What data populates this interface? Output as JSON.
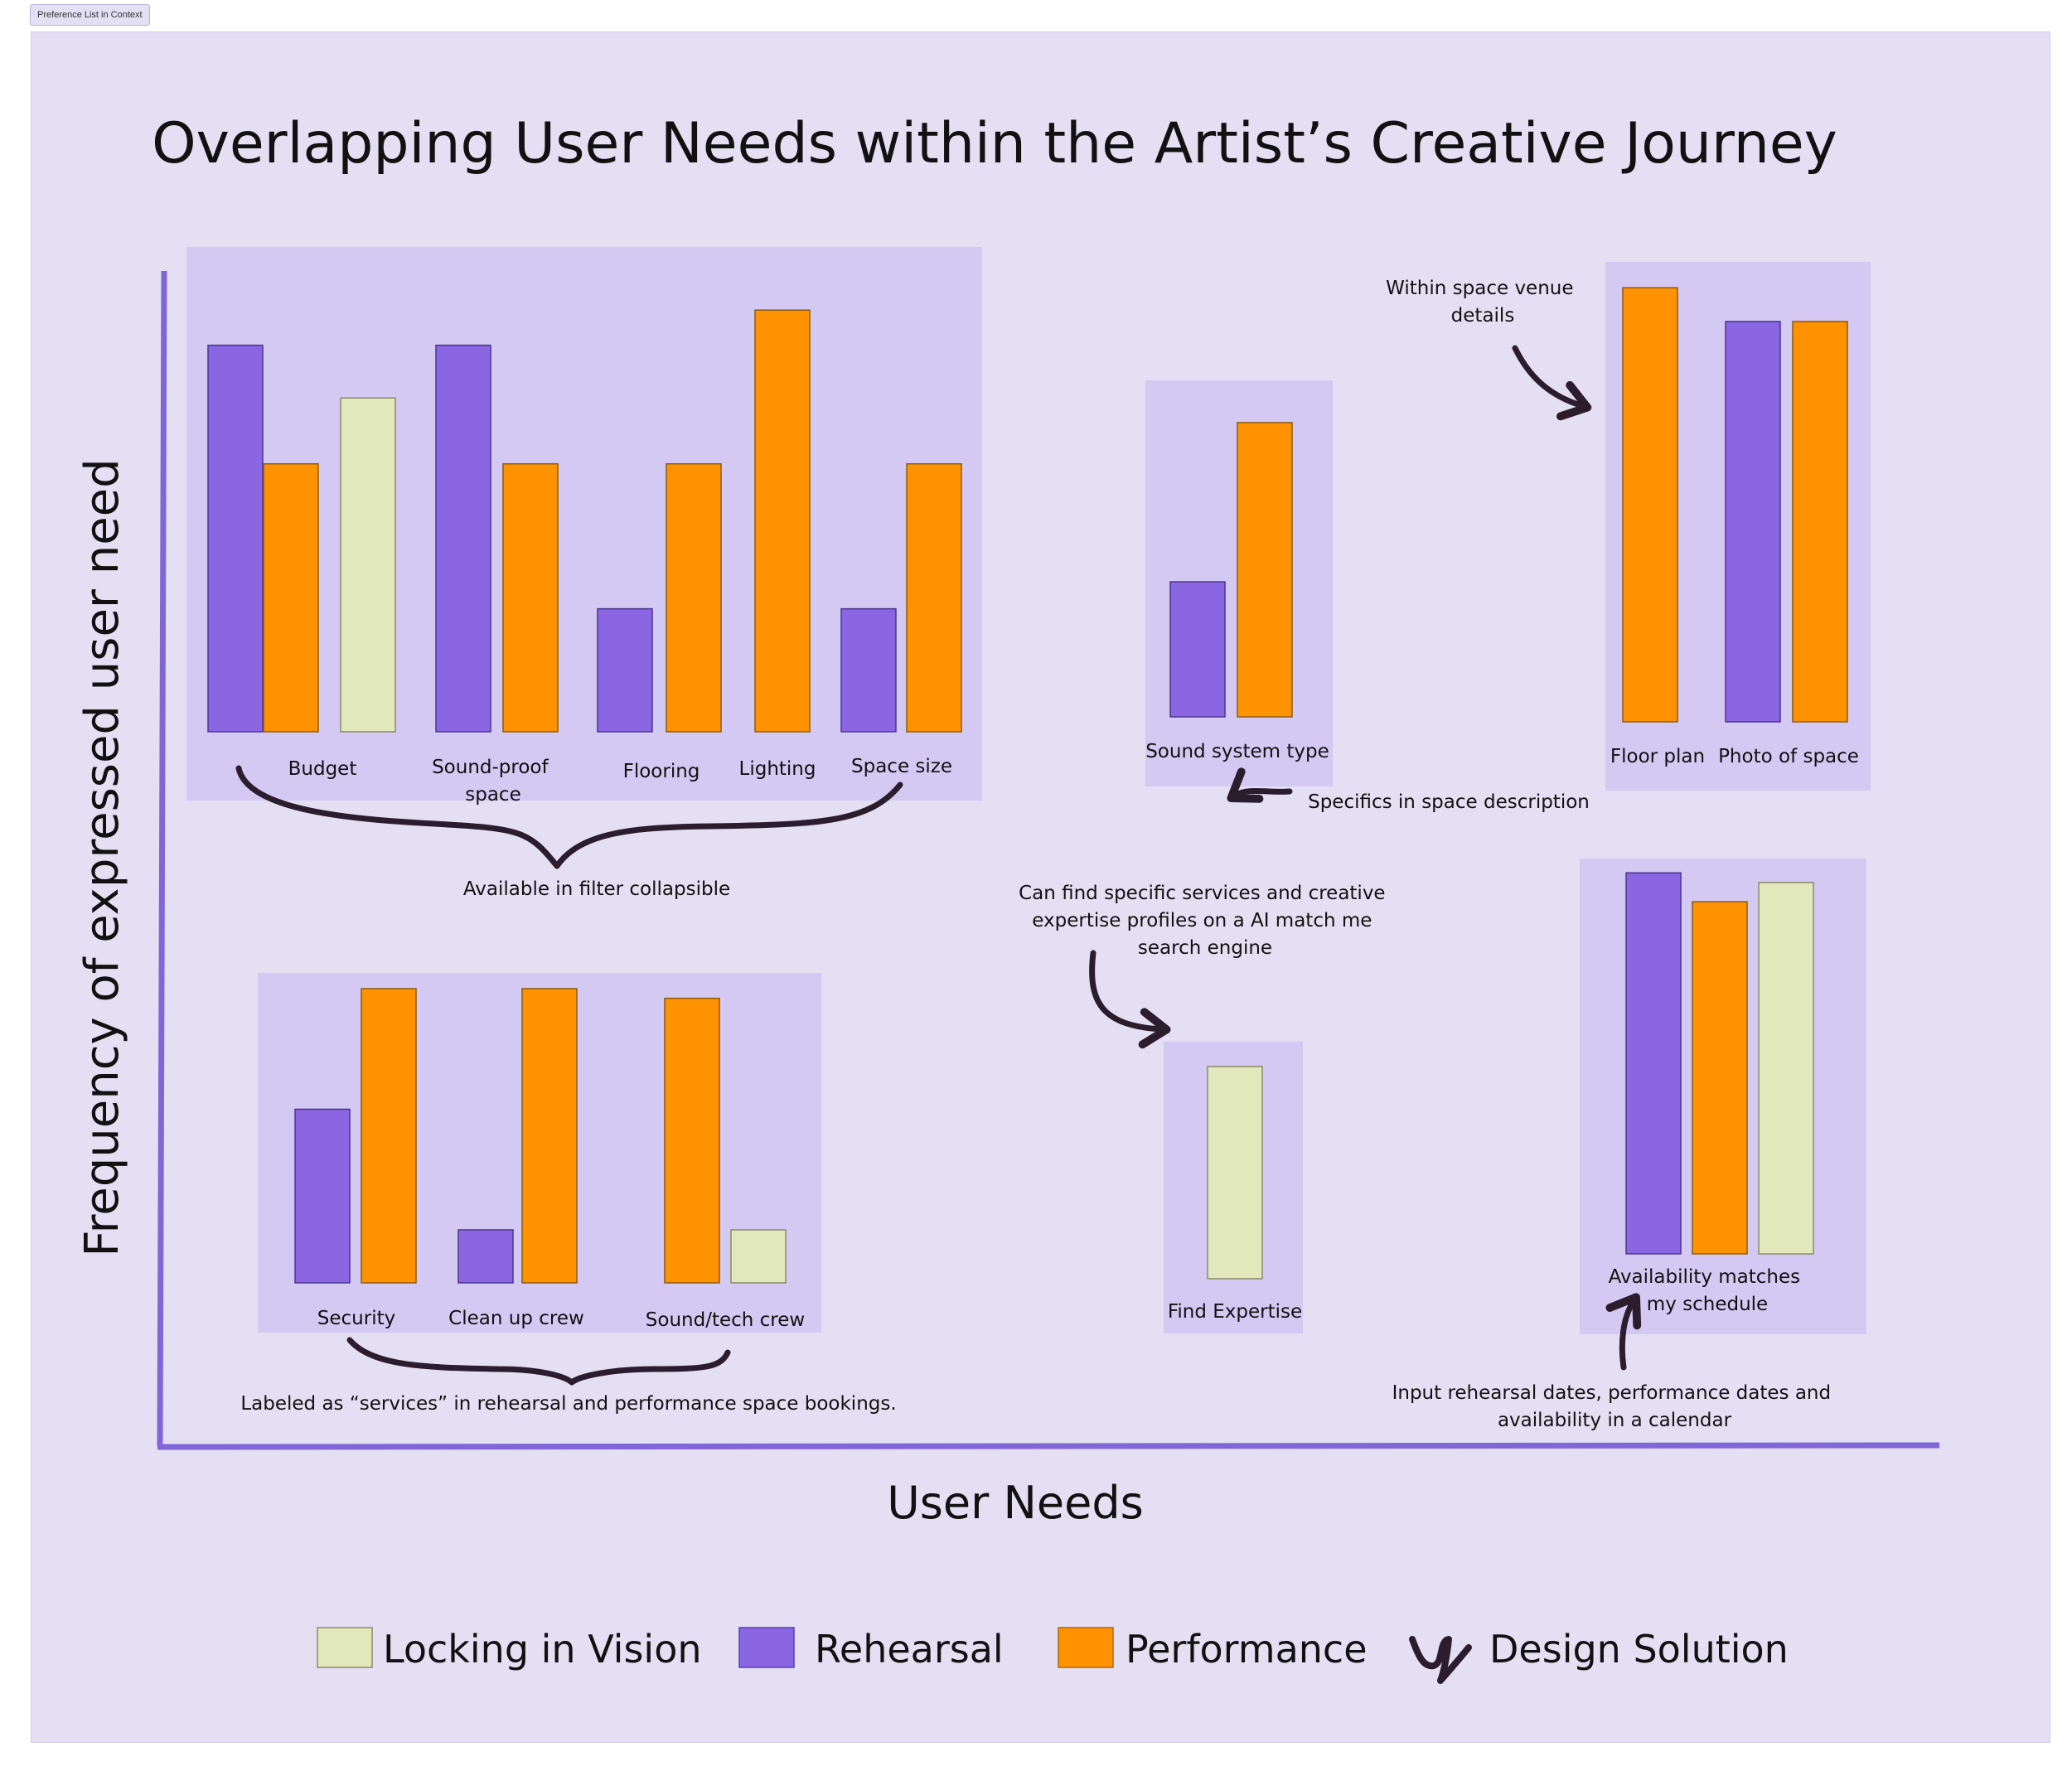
{
  "frame_label": "Preference List in Context",
  "chart_data": {
    "type": "bar",
    "title": "Overlapping User Needs within the Artist’s Creative Journey",
    "xlabel": "User Needs",
    "ylabel": "Frequency of expressed user need",
    "value_scale": "relative frequency (0-100), estimated from bar heights; no numeric axis shown",
    "series": [
      {
        "name": "Locking in Vision",
        "color": "#e0e8bc"
      },
      {
        "name": "Rehearsal",
        "color": "#8a66e2"
      },
      {
        "name": "Performance",
        "color": "#ff9201"
      }
    ],
    "groups": [
      {
        "id": "filters",
        "categories": [
          {
            "label": "Budget",
            "bars": [
              {
                "series": "Rehearsal",
                "value": 88
              },
              {
                "series": "Performance",
                "value": 61
              },
              {
                "series": "Locking in Vision",
                "value": 76
              }
            ]
          },
          {
            "label": "Sound-proof space",
            "bars": [
              {
                "series": "Rehearsal",
                "value": 88
              },
              {
                "series": "Performance",
                "value": 61
              }
            ]
          },
          {
            "label": "Flooring",
            "bars": [
              {
                "series": "Rehearsal",
                "value": 28
              },
              {
                "series": "Performance",
                "value": 61
              }
            ]
          },
          {
            "label": "Lighting",
            "bars": [
              {
                "series": "Performance",
                "value": 96
              }
            ]
          },
          {
            "label": "Space size",
            "bars": [
              {
                "series": "Rehearsal",
                "value": 28
              },
              {
                "series": "Performance",
                "value": 61
              }
            ]
          }
        ],
        "annotation": "Available in filter collapsible"
      },
      {
        "id": "services",
        "categories": [
          {
            "label": "Security",
            "bars": [
              {
                "series": "Rehearsal",
                "value": 36
              },
              {
                "series": "Performance",
                "value": 61
              }
            ]
          },
          {
            "label": "Clean up crew",
            "bars": [
              {
                "series": "Rehearsal",
                "value": 11
              },
              {
                "series": "Performance",
                "value": 61
              }
            ]
          },
          {
            "label": "Sound/tech crew",
            "bars": [
              {
                "series": "Performance",
                "value": 59
              },
              {
                "series": "Locking in Vision",
                "value": 11
              }
            ]
          }
        ],
        "annotation": "Labeled as “services” in rehearsal and performance space bookings."
      },
      {
        "id": "sound-system",
        "categories": [
          {
            "label": "Sound system type",
            "bars": [
              {
                "series": "Rehearsal",
                "value": 28
              },
              {
                "series": "Performance",
                "value": 61
              }
            ]
          }
        ],
        "annotation": "Specifics in space description"
      },
      {
        "id": "venue-details",
        "categories": [
          {
            "label": "Floor plan",
            "bars": [
              {
                "series": "Performance",
                "value": 90
              }
            ]
          },
          {
            "label": "Photo of space",
            "bars": [
              {
                "series": "Rehearsal",
                "value": 83
              },
              {
                "series": "Performance",
                "value": 83
              }
            ]
          }
        ],
        "annotation": "Within space venue details"
      },
      {
        "id": "expertise",
        "categories": [
          {
            "label": "Find Expertise",
            "bars": [
              {
                "series": "Locking in Vision",
                "value": 44
              }
            ]
          }
        ],
        "annotation": "Can find specific services and creative expertise profiles on a AI match me search engine"
      },
      {
        "id": "availability",
        "categories": [
          {
            "label": "Availability matches my schedule",
            "bars": [
              {
                "series": "Rehearsal",
                "value": 79
              },
              {
                "series": "Performance",
                "value": 73
              },
              {
                "series": "Locking in Vision",
                "value": 77
              }
            ]
          }
        ],
        "annotation": "Input rehearsal dates, performance dates and availability in a calendar"
      }
    ],
    "legend": [
      {
        "label": "Locking in Vision",
        "color": "#e0e8bc",
        "symbol": "square"
      },
      {
        "label": "Rehearsal",
        "color": "#8a66e2",
        "symbol": "square"
      },
      {
        "label": "Performance",
        "color": "#ff9201",
        "symbol": "square"
      },
      {
        "label": "Design Solution",
        "color": "#2b1d2e",
        "symbol": "scribble"
      }
    ]
  }
}
